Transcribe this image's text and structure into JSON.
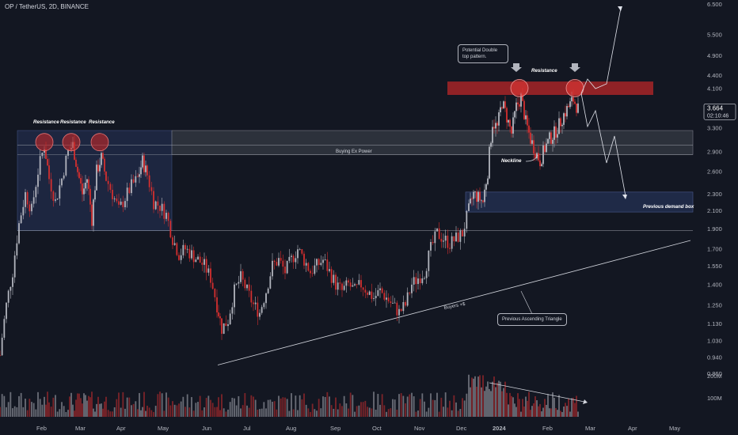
{
  "header": {
    "title": "OP / TetherUS, 2D, BINANCE"
  },
  "price_tag": {
    "value": "3.664",
    "countdown": "02:10:46"
  },
  "colors": {
    "up": "#b2b5be",
    "down": "#d32f2f",
    "background": "#131722",
    "resistance_zone": "#c62828",
    "blue_zone": "#1e2a4a"
  },
  "chart_data": {
    "type": "candlestick",
    "title": "OP / TetherUS, 2D, BINANCE",
    "y_scale": "log",
    "y_ticks": [
      "6.500",
      "5.500",
      "4.900",
      "4.400",
      "4.100",
      "3.664",
      "3.300",
      "2.900",
      "2.600",
      "2.300",
      "2.100",
      "1.900",
      "1.700",
      "1.550",
      "1.400",
      "1.250",
      "1.130",
      "1.030",
      "0.940",
      "0.860"
    ],
    "volume_ticks": [
      "200M",
      "100M"
    ],
    "x_ticks": [
      "Feb",
      "Mar",
      "Apr",
      "May",
      "Jun",
      "Jul",
      "Aug",
      "Sep",
      "Oct",
      "Nov",
      "Dec",
      "2024",
      "Feb",
      "Mar",
      "Apr",
      "May"
    ],
    "price_path": [
      {
        "x": 0,
        "y": 0.95
      },
      {
        "x": 8,
        "y": 1.25
      },
      {
        "x": 16,
        "y": 1.5
      },
      {
        "x": 24,
        "y": 1.95
      },
      {
        "x": 32,
        "y": 2.3
      },
      {
        "x": 40,
        "y": 2.1
      },
      {
        "x": 48,
        "y": 2.6
      },
      {
        "x": 56,
        "y": 3.0
      },
      {
        "x": 62,
        "y": 2.5
      },
      {
        "x": 70,
        "y": 2.2
      },
      {
        "x": 78,
        "y": 2.5
      },
      {
        "x": 86,
        "y": 2.9
      },
      {
        "x": 92,
        "y": 3.0
      },
      {
        "x": 98,
        "y": 2.6
      },
      {
        "x": 104,
        "y": 2.3
      },
      {
        "x": 110,
        "y": 2.5
      },
      {
        "x": 116,
        "y": 2.0
      },
      {
        "x": 122,
        "y": 2.6
      },
      {
        "x": 128,
        "y": 2.8
      },
      {
        "x": 134,
        "y": 2.5
      },
      {
        "x": 142,
        "y": 2.3
      },
      {
        "x": 150,
        "y": 2.1
      },
      {
        "x": 158,
        "y": 2.25
      },
      {
        "x": 166,
        "y": 2.4
      },
      {
        "x": 174,
        "y": 2.5
      },
      {
        "x": 180,
        "y": 2.75
      },
      {
        "x": 186,
        "y": 2.55
      },
      {
        "x": 194,
        "y": 2.2
      },
      {
        "x": 202,
        "y": 2.15
      },
      {
        "x": 210,
        "y": 2.05
      },
      {
        "x": 218,
        "y": 1.8
      },
      {
        "x": 226,
        "y": 1.65
      },
      {
        "x": 234,
        "y": 1.7
      },
      {
        "x": 242,
        "y": 1.65
      },
      {
        "x": 250,
        "y": 1.6
      },
      {
        "x": 258,
        "y": 1.55
      },
      {
        "x": 266,
        "y": 1.45
      },
      {
        "x": 274,
        "y": 1.25
      },
      {
        "x": 280,
        "y": 1.1
      },
      {
        "x": 288,
        "y": 1.15
      },
      {
        "x": 296,
        "y": 1.35
      },
      {
        "x": 304,
        "y": 1.45
      },
      {
        "x": 312,
        "y": 1.35
      },
      {
        "x": 320,
        "y": 1.25
      },
      {
        "x": 328,
        "y": 1.2
      },
      {
        "x": 336,
        "y": 1.35
      },
      {
        "x": 344,
        "y": 1.55
      },
      {
        "x": 352,
        "y": 1.6
      },
      {
        "x": 360,
        "y": 1.5
      },
      {
        "x": 368,
        "y": 1.6
      },
      {
        "x": 376,
        "y": 1.7
      },
      {
        "x": 384,
        "y": 1.6
      },
      {
        "x": 392,
        "y": 1.5
      },
      {
        "x": 400,
        "y": 1.55
      },
      {
        "x": 408,
        "y": 1.6
      },
      {
        "x": 416,
        "y": 1.5
      },
      {
        "x": 424,
        "y": 1.4
      },
      {
        "x": 432,
        "y": 1.35
      },
      {
        "x": 440,
        "y": 1.4
      },
      {
        "x": 448,
        "y": 1.35
      },
      {
        "x": 456,
        "y": 1.4
      },
      {
        "x": 464,
        "y": 1.35
      },
      {
        "x": 472,
        "y": 1.3
      },
      {
        "x": 480,
        "y": 1.35
      },
      {
        "x": 488,
        "y": 1.3
      },
      {
        "x": 496,
        "y": 1.25
      },
      {
        "x": 504,
        "y": 1.2
      },
      {
        "x": 512,
        "y": 1.25
      },
      {
        "x": 520,
        "y": 1.4
      },
      {
        "x": 528,
        "y": 1.45
      },
      {
        "x": 536,
        "y": 1.5
      },
      {
        "x": 544,
        "y": 1.7
      },
      {
        "x": 552,
        "y": 1.85
      },
      {
        "x": 560,
        "y": 1.8
      },
      {
        "x": 568,
        "y": 1.75
      },
      {
        "x": 576,
        "y": 1.8
      },
      {
        "x": 584,
        "y": 1.85
      },
      {
        "x": 592,
        "y": 2.1
      },
      {
        "x": 598,
        "y": 2.3
      },
      {
        "x": 604,
        "y": 2.25
      },
      {
        "x": 610,
        "y": 2.2
      },
      {
        "x": 616,
        "y": 2.6
      },
      {
        "x": 622,
        "y": 3.4
      },
      {
        "x": 628,
        "y": 3.3
      },
      {
        "x": 634,
        "y": 3.8
      },
      {
        "x": 640,
        "y": 3.5
      },
      {
        "x": 646,
        "y": 3.2
      },
      {
        "x": 652,
        "y": 3.7
      },
      {
        "x": 658,
        "y": 3.9
      },
      {
        "x": 664,
        "y": 3.4
      },
      {
        "x": 670,
        "y": 3.1
      },
      {
        "x": 676,
        "y": 2.9
      },
      {
        "x": 682,
        "y": 2.75
      },
      {
        "x": 688,
        "y": 2.95
      },
      {
        "x": 694,
        "y": 3.1
      },
      {
        "x": 700,
        "y": 3.2
      },
      {
        "x": 706,
        "y": 3.35
      },
      {
        "x": 712,
        "y": 3.55
      },
      {
        "x": 718,
        "y": 3.7
      },
      {
        "x": 724,
        "y": 3.85
      },
      {
        "x": 730,
        "y": 3.664
      }
    ],
    "zones": [
      {
        "name": "Resistance zone",
        "type": "resistance",
        "y_top": 4.25,
        "y_bottom": 3.95
      },
      {
        "name": "Buying Ex Power",
        "type": "range",
        "y_top": 3.25,
        "y_bottom": 2.85
      },
      {
        "name": "Previous demand box",
        "type": "demand",
        "y_top": 2.32,
        "y_bottom": 2.08
      },
      {
        "name": "Left range",
        "type": "range",
        "y_top": 3.25,
        "y_bottom": 1.88
      }
    ],
    "hlines": [
      {
        "y": 1.88
      },
      {
        "y": 3.0
      },
      {
        "y": 2.85
      }
    ],
    "trendline": {
      "label": "Buyers +$",
      "from": {
        "x": 275,
        "y": 0.9
      },
      "to": {
        "x": 872,
        "y": 1.78
      }
    },
    "labels": {
      "resistance": "Resistance",
      "buying": "Buying Ex Power",
      "neckline": "Neckline",
      "demand": "Previous demand box",
      "buyers": "Buyers +$",
      "double_top": "Potential Double top pattern.",
      "triangle": "Previous Ascending Triangle"
    }
  }
}
